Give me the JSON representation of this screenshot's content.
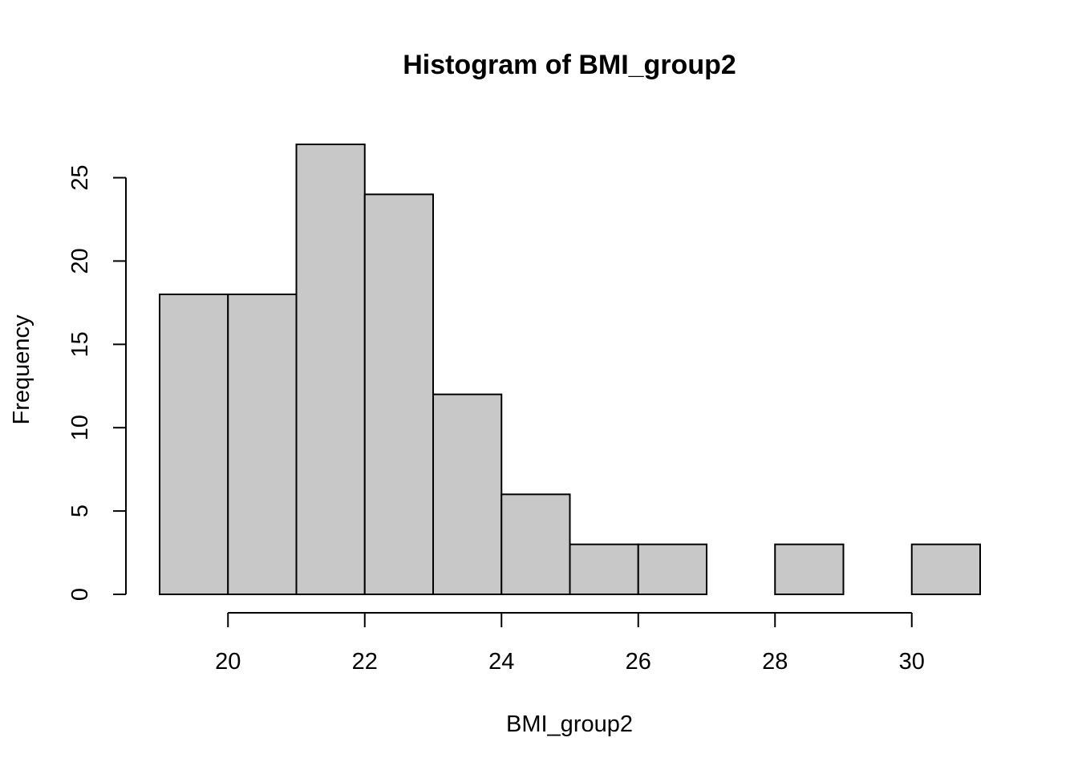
{
  "chart_data": {
    "type": "bar",
    "title": "Histogram of BMI_group2",
    "xlabel": "BMI_group2",
    "ylabel": "Frequency",
    "bins": [
      {
        "start": 19,
        "end": 20,
        "value": 18
      },
      {
        "start": 20,
        "end": 21,
        "value": 18
      },
      {
        "start": 21,
        "end": 22,
        "value": 27
      },
      {
        "start": 22,
        "end": 23,
        "value": 24
      },
      {
        "start": 23,
        "end": 24,
        "value": 12
      },
      {
        "start": 24,
        "end": 25,
        "value": 6
      },
      {
        "start": 25,
        "end": 26,
        "value": 3
      },
      {
        "start": 26,
        "end": 27,
        "value": 3
      },
      {
        "start": 27,
        "end": 28,
        "value": 0
      },
      {
        "start": 28,
        "end": 29,
        "value": 3
      },
      {
        "start": 29,
        "end": 30,
        "value": 0
      },
      {
        "start": 30,
        "end": 31,
        "value": 3
      }
    ],
    "xlim": [
      19,
      31
    ],
    "ylim": [
      0,
      27
    ],
    "x_ticks": [
      20,
      22,
      24,
      26,
      28,
      30
    ],
    "y_ticks": [
      0,
      5,
      10,
      15,
      20,
      25
    ],
    "bar_color": "#c8c8c8",
    "edge_color": "#000000",
    "grid": false
  }
}
